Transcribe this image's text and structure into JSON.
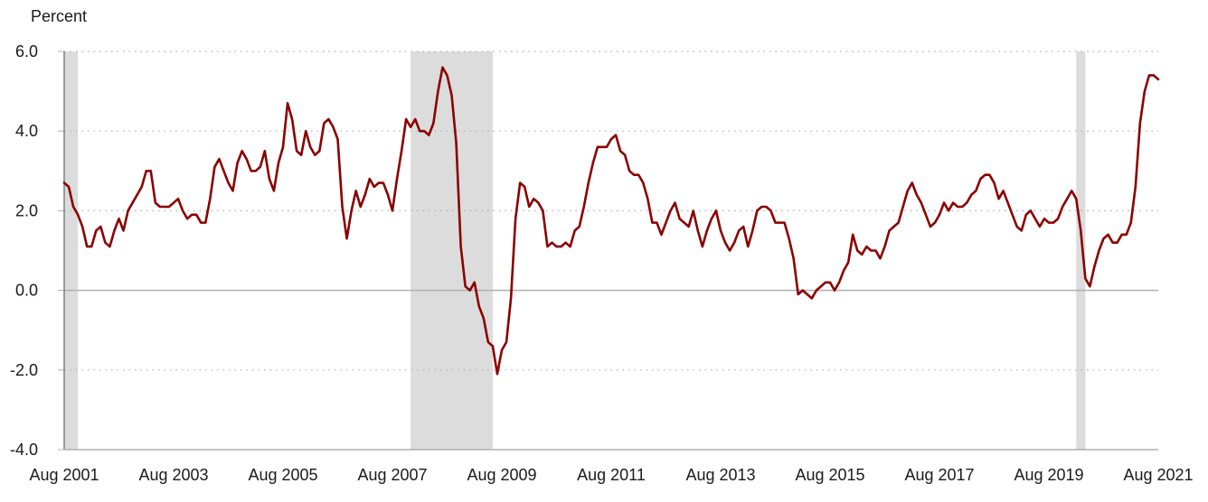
{
  "chart_data": {
    "type": "line",
    "title": "",
    "ylabel": "Percent",
    "xlabel": "",
    "x_tick_labels": [
      "Aug 2001",
      "Aug 2003",
      "Aug 2005",
      "Aug 2007",
      "Aug 2009",
      "Aug 2011",
      "Aug 2013",
      "Aug 2015",
      "Aug 2017",
      "Aug 2019",
      "Aug 2021"
    ],
    "y_tick_labels": [
      "-4.0",
      "-2.0",
      "0.0",
      "2.0",
      "4.0",
      "6.0"
    ],
    "ylim": [
      -4,
      6
    ],
    "xlim": [
      "2001-08",
      "2021-08"
    ],
    "grid": "horizontal dotted",
    "zero_line": true,
    "colors": {
      "series": "#8b0000",
      "recession": "#dcdcdc",
      "grid": "#b0b0b0",
      "axis": "#b0b0b0"
    },
    "recessions": [
      {
        "start": "2001-08",
        "end": "2001-11"
      },
      {
        "start": "2007-12",
        "end": "2009-06"
      },
      {
        "start": "2020-02",
        "end": "2020-04"
      }
    ],
    "series": [
      {
        "start": "2001-08",
        "frequency": "monthly",
        "values": [
          2.7,
          2.6,
          2.1,
          1.9,
          1.6,
          1.1,
          1.1,
          1.5,
          1.6,
          1.2,
          1.1,
          1.5,
          1.8,
          1.5,
          2.0,
          2.2,
          2.4,
          2.6,
          3.0,
          3.0,
          2.2,
          2.1,
          2.1,
          2.1,
          2.2,
          2.3,
          2.0,
          1.8,
          1.9,
          1.9,
          1.7,
          1.7,
          2.3,
          3.1,
          3.3,
          3.0,
          2.7,
          2.5,
          3.2,
          3.5,
          3.3,
          3.0,
          3.0,
          3.1,
          3.5,
          2.8,
          2.5,
          3.2,
          3.6,
          4.7,
          4.3,
          3.5,
          3.4,
          4.0,
          3.6,
          3.4,
          3.5,
          4.2,
          4.3,
          4.1,
          3.8,
          2.1,
          1.3,
          2.0,
          2.5,
          2.1,
          2.4,
          2.8,
          2.6,
          2.7,
          2.7,
          2.4,
          2.0,
          2.8,
          3.5,
          4.3,
          4.1,
          4.3,
          4.0,
          4.0,
          3.9,
          4.2,
          5.0,
          5.6,
          5.4,
          4.9,
          3.7,
          1.1,
          0.1,
          0.0,
          0.2,
          -0.4,
          -0.7,
          -1.3,
          -1.4,
          -2.1,
          -1.5,
          -1.3,
          -0.2,
          1.8,
          2.7,
          2.6,
          2.1,
          2.3,
          2.2,
          2.0,
          1.1,
          1.2,
          1.1,
          1.1,
          1.2,
          1.1,
          1.5,
          1.6,
          2.1,
          2.7,
          3.2,
          3.6,
          3.6,
          3.6,
          3.8,
          3.9,
          3.5,
          3.4,
          3.0,
          2.9,
          2.9,
          2.7,
          2.3,
          1.7,
          1.7,
          1.4,
          1.7,
          2.0,
          2.2,
          1.8,
          1.7,
          1.6,
          2.0,
          1.5,
          1.1,
          1.5,
          1.8,
          2.0,
          1.5,
          1.2,
          1.0,
          1.2,
          1.5,
          1.6,
          1.1,
          1.5,
          2.0,
          2.1,
          2.1,
          2.0,
          1.7,
          1.7,
          1.7,
          1.3,
          0.8,
          -0.1,
          0.0,
          -0.1,
          -0.2,
          0.0,
          0.1,
          0.2,
          0.2,
          0.0,
          0.2,
          0.5,
          0.7,
          1.4,
          1.0,
          0.9,
          1.1,
          1.0,
          1.0,
          0.8,
          1.1,
          1.5,
          1.6,
          1.7,
          2.1,
          2.5,
          2.7,
          2.4,
          2.2,
          1.9,
          1.6,
          1.7,
          1.9,
          2.2,
          2.0,
          2.2,
          2.1,
          2.1,
          2.2,
          2.4,
          2.5,
          2.8,
          2.9,
          2.9,
          2.7,
          2.3,
          2.5,
          2.2,
          1.9,
          1.6,
          1.5,
          1.9,
          2.0,
          1.8,
          1.6,
          1.8,
          1.7,
          1.7,
          1.8,
          2.1,
          2.3,
          2.5,
          2.3,
          1.5,
          0.3,
          0.1,
          0.6,
          1.0,
          1.3,
          1.4,
          1.2,
          1.2,
          1.4,
          1.4,
          1.7,
          2.6,
          4.2,
          5.0,
          5.4,
          5.4,
          5.3
        ]
      }
    ]
  }
}
